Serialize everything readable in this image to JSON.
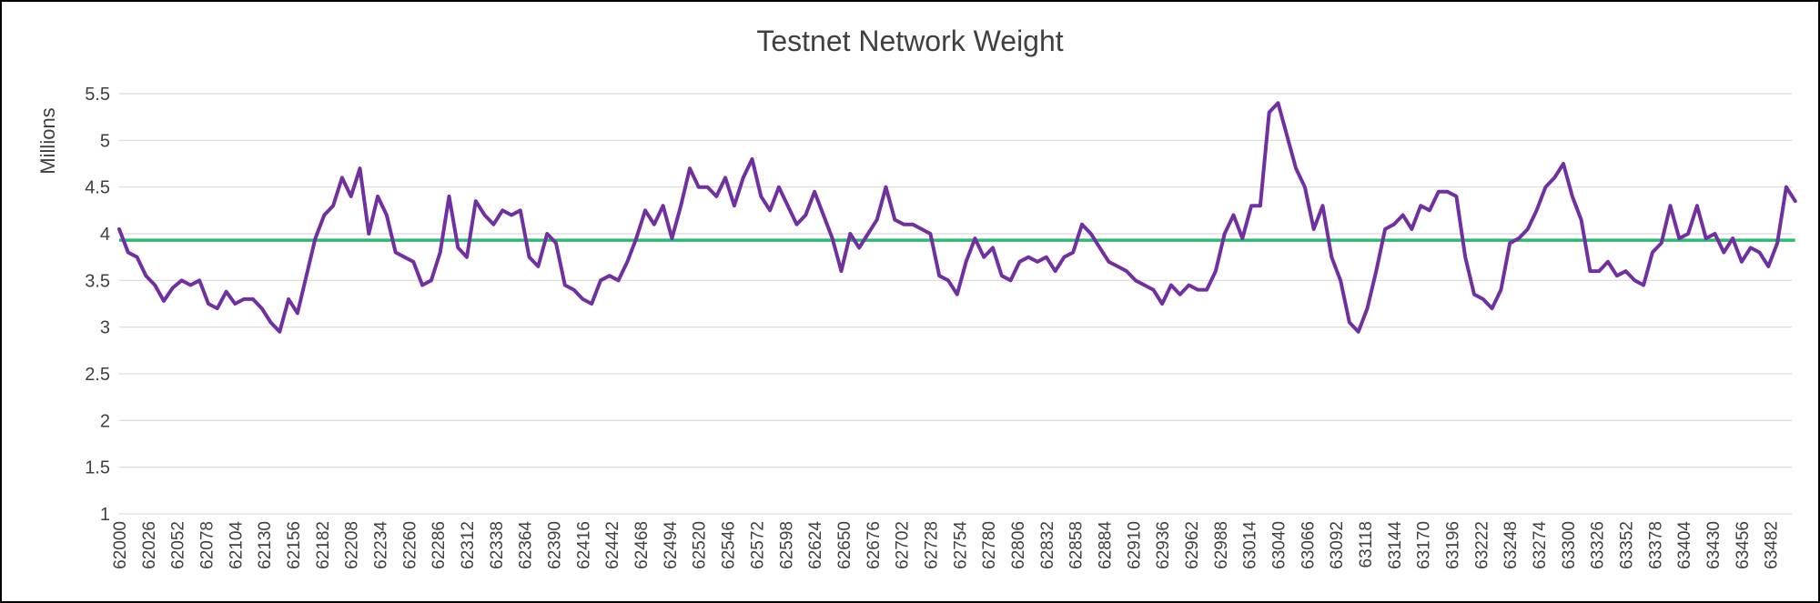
{
  "chart_data": {
    "type": "line",
    "title": "Testnet Network Weight",
    "ylabel": "Millions",
    "xlabel": "",
    "ylim": [
      1,
      5.5
    ],
    "yticks": [
      1,
      1.5,
      2,
      2.5,
      3,
      3.5,
      4,
      4.5,
      5,
      5.5
    ],
    "ytick_labels": [
      "1",
      "1.5",
      "2",
      "2.5",
      "3",
      "3.5",
      "4",
      "4.5",
      "5",
      "5.5"
    ],
    "xlim": [
      62000,
      63501
    ],
    "xticks": [
      62000,
      62026,
      62052,
      62078,
      62104,
      62130,
      62156,
      62182,
      62208,
      62234,
      62260,
      62286,
      62312,
      62338,
      62364,
      62390,
      62416,
      62442,
      62468,
      62494,
      62520,
      62546,
      62572,
      62598,
      62624,
      62650,
      62676,
      62702,
      62728,
      62754,
      62780,
      62806,
      62832,
      62858,
      62884,
      62910,
      62936,
      62962,
      62988,
      63014,
      63040,
      63066,
      63092,
      63118,
      63144,
      63170,
      63196,
      63222,
      63248,
      63274,
      63300,
      63326,
      63352,
      63378,
      63404,
      63430,
      63456,
      63482
    ],
    "grid": true,
    "legend": "none",
    "colors": {
      "weight": "#7030a0",
      "average": "#2eb872",
      "grid": "#d9d9d9",
      "text": "#404040"
    },
    "series": [
      {
        "values": [
          [
            62000,
            4.05
          ],
          [
            62008,
            3.8
          ],
          [
            62016,
            3.75
          ],
          [
            62024,
            3.55
          ],
          [
            62032,
            3.45
          ],
          [
            62040,
            3.28
          ],
          [
            62048,
            3.42
          ],
          [
            62056,
            3.5
          ],
          [
            62064,
            3.45
          ],
          [
            62072,
            3.5
          ],
          [
            62080,
            3.25
          ],
          [
            62088,
            3.2
          ],
          [
            62096,
            3.38
          ],
          [
            62104,
            3.25
          ],
          [
            62112,
            3.3
          ],
          [
            62120,
            3.3
          ],
          [
            62128,
            3.2
          ],
          [
            62136,
            3.05
          ],
          [
            62144,
            2.95
          ],
          [
            62152,
            3.3
          ],
          [
            62160,
            3.15
          ],
          [
            62168,
            3.55
          ],
          [
            62176,
            3.95
          ],
          [
            62184,
            4.2
          ],
          [
            62192,
            4.3
          ],
          [
            62200,
            4.6
          ],
          [
            62208,
            4.4
          ],
          [
            62216,
            4.7
          ],
          [
            62224,
            4.0
          ],
          [
            62232,
            4.4
          ],
          [
            62240,
            4.2
          ],
          [
            62248,
            3.8
          ],
          [
            62256,
            3.75
          ],
          [
            62264,
            3.7
          ],
          [
            62272,
            3.45
          ],
          [
            62280,
            3.5
          ],
          [
            62288,
            3.8
          ],
          [
            62296,
            4.4
          ],
          [
            62304,
            3.85
          ],
          [
            62312,
            3.75
          ],
          [
            62320,
            4.35
          ],
          [
            62328,
            4.2
          ],
          [
            62336,
            4.1
          ],
          [
            62344,
            4.25
          ],
          [
            62352,
            4.2
          ],
          [
            62360,
            4.25
          ],
          [
            62368,
            3.75
          ],
          [
            62376,
            3.65
          ],
          [
            62384,
            4.0
          ],
          [
            62392,
            3.9
          ],
          [
            62400,
            3.45
          ],
          [
            62408,
            3.4
          ],
          [
            62416,
            3.3
          ],
          [
            62424,
            3.25
          ],
          [
            62432,
            3.5
          ],
          [
            62440,
            3.55
          ],
          [
            62448,
            3.5
          ],
          [
            62456,
            3.7
          ],
          [
            62464,
            3.95
          ],
          [
            62472,
            4.25
          ],
          [
            62480,
            4.1
          ],
          [
            62488,
            4.3
          ],
          [
            62496,
            3.95
          ],
          [
            62504,
            4.3
          ],
          [
            62512,
            4.7
          ],
          [
            62520,
            4.5
          ],
          [
            62528,
            4.5
          ],
          [
            62536,
            4.4
          ],
          [
            62544,
            4.6
          ],
          [
            62552,
            4.3
          ],
          [
            62560,
            4.6
          ],
          [
            62568,
            4.8
          ],
          [
            62576,
            4.4
          ],
          [
            62584,
            4.25
          ],
          [
            62592,
            4.5
          ],
          [
            62600,
            4.3
          ],
          [
            62608,
            4.1
          ],
          [
            62616,
            4.2
          ],
          [
            62624,
            4.45
          ],
          [
            62632,
            4.2
          ],
          [
            62640,
            3.95
          ],
          [
            62648,
            3.6
          ],
          [
            62656,
            4.0
          ],
          [
            62664,
            3.85
          ],
          [
            62672,
            4.0
          ],
          [
            62680,
            4.15
          ],
          [
            62688,
            4.5
          ],
          [
            62696,
            4.15
          ],
          [
            62704,
            4.1
          ],
          [
            62712,
            4.1
          ],
          [
            62720,
            4.05
          ],
          [
            62728,
            4.0
          ],
          [
            62736,
            3.55
          ],
          [
            62744,
            3.5
          ],
          [
            62752,
            3.35
          ],
          [
            62760,
            3.7
          ],
          [
            62768,
            3.95
          ],
          [
            62776,
            3.75
          ],
          [
            62784,
            3.85
          ],
          [
            62792,
            3.55
          ],
          [
            62800,
            3.5
          ],
          [
            62808,
            3.7
          ],
          [
            62816,
            3.75
          ],
          [
            62824,
            3.7
          ],
          [
            62832,
            3.75
          ],
          [
            62840,
            3.6
          ],
          [
            62848,
            3.75
          ],
          [
            62856,
            3.8
          ],
          [
            62864,
            4.1
          ],
          [
            62872,
            4.0
          ],
          [
            62880,
            3.85
          ],
          [
            62888,
            3.7
          ],
          [
            62896,
            3.65
          ],
          [
            62904,
            3.6
          ],
          [
            62912,
            3.5
          ],
          [
            62920,
            3.45
          ],
          [
            62928,
            3.4
          ],
          [
            62936,
            3.25
          ],
          [
            62944,
            3.45
          ],
          [
            62952,
            3.35
          ],
          [
            62960,
            3.45
          ],
          [
            62968,
            3.4
          ],
          [
            62976,
            3.4
          ],
          [
            62984,
            3.6
          ],
          [
            62992,
            4.0
          ],
          [
            63000,
            4.2
          ],
          [
            63008,
            3.95
          ],
          [
            63016,
            4.3
          ],
          [
            63024,
            4.3
          ],
          [
            63032,
            5.3
          ],
          [
            63040,
            5.4
          ],
          [
            63048,
            5.05
          ],
          [
            63056,
            4.7
          ],
          [
            63064,
            4.5
          ],
          [
            63072,
            4.05
          ],
          [
            63080,
            4.3
          ],
          [
            63088,
            3.75
          ],
          [
            63096,
            3.5
          ],
          [
            63104,
            3.05
          ],
          [
            63112,
            2.95
          ],
          [
            63120,
            3.2
          ],
          [
            63128,
            3.6
          ],
          [
            63136,
            4.05
          ],
          [
            63144,
            4.1
          ],
          [
            63152,
            4.2
          ],
          [
            63160,
            4.05
          ],
          [
            63168,
            4.3
          ],
          [
            63176,
            4.25
          ],
          [
            63184,
            4.45
          ],
          [
            63192,
            4.45
          ],
          [
            63200,
            4.4
          ],
          [
            63208,
            3.75
          ],
          [
            63216,
            3.35
          ],
          [
            63224,
            3.3
          ],
          [
            63232,
            3.2
          ],
          [
            63240,
            3.4
          ],
          [
            63248,
            3.9
          ],
          [
            63256,
            3.95
          ],
          [
            63264,
            4.05
          ],
          [
            63272,
            4.25
          ],
          [
            63280,
            4.5
          ],
          [
            63288,
            4.6
          ],
          [
            63296,
            4.75
          ],
          [
            63304,
            4.4
          ],
          [
            63312,
            4.15
          ],
          [
            63320,
            3.6
          ],
          [
            63328,
            3.6
          ],
          [
            63336,
            3.7
          ],
          [
            63344,
            3.55
          ],
          [
            63352,
            3.6
          ],
          [
            63360,
            3.5
          ],
          [
            63368,
            3.45
          ],
          [
            63376,
            3.8
          ],
          [
            63384,
            3.9
          ],
          [
            63392,
            4.3
          ],
          [
            63400,
            3.95
          ],
          [
            63408,
            4.0
          ],
          [
            63416,
            4.3
          ],
          [
            63424,
            3.95
          ],
          [
            63432,
            4.0
          ],
          [
            63440,
            3.8
          ],
          [
            63448,
            3.95
          ],
          [
            63456,
            3.7
          ],
          [
            63464,
            3.85
          ],
          [
            63472,
            3.8
          ],
          [
            63480,
            3.65
          ],
          [
            63488,
            3.9
          ],
          [
            63496,
            4.5
          ],
          [
            63504,
            4.35
          ]
        ]
      },
      {
        "values": [
          [
            62000,
            3.93
          ],
          [
            63504,
            3.93
          ]
        ]
      }
    ]
  }
}
